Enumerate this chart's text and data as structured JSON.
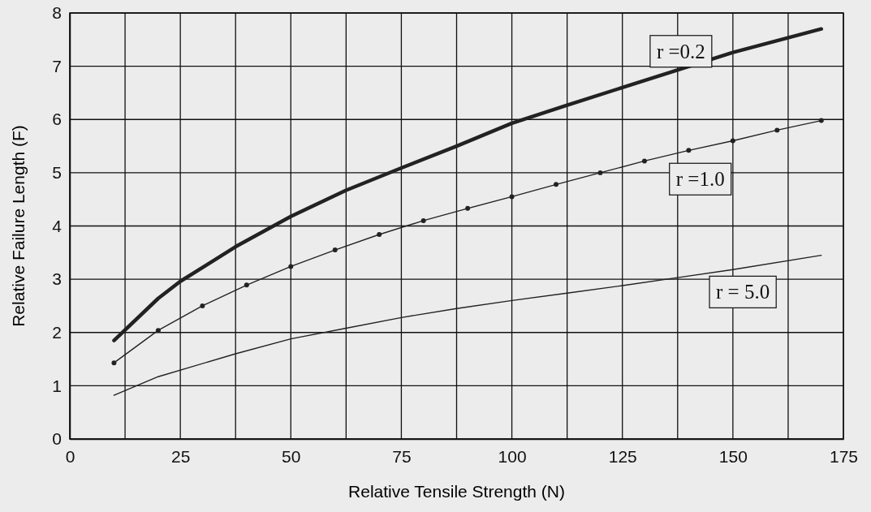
{
  "chart_data": {
    "type": "line",
    "xlabel": "Relative Tensile Strength (N)",
    "ylabel": "Relative Failure Length (F)",
    "xlim": [
      0,
      175
    ],
    "ylim": [
      0,
      8
    ],
    "xticks": [
      0,
      {
        "value": 12.5,
        "label": null
      },
      25,
      {
        "value": 37.5,
        "label": null
      },
      50,
      {
        "value": 62.5,
        "label": null
      },
      75,
      {
        "value": 87.5,
        "label": null
      },
      100,
      {
        "value": 112.5,
        "label": null
      },
      125,
      {
        "value": 137.5,
        "label": null
      },
      150,
      {
        "value": 162.5,
        "label": null
      },
      175
    ],
    "yticks": [
      0,
      1,
      2,
      3,
      4,
      5,
      6,
      7,
      8
    ],
    "grid": true,
    "series": [
      {
        "name": "r =0.2",
        "color": "#222222",
        "marker": "none",
        "x": [
          10,
          20,
          25,
          37.5,
          50,
          62.5,
          75,
          87.5,
          100,
          112.5,
          125,
          150,
          170
        ],
        "values": [
          1.85,
          2.64,
          2.96,
          3.61,
          4.18,
          4.67,
          5.09,
          5.5,
          5.93,
          6.27,
          6.6,
          7.26,
          7.7
        ]
      },
      {
        "name": "r =1.0",
        "color": "#222222",
        "marker": "circle",
        "x": [
          10,
          20,
          30,
          40,
          50,
          60,
          70,
          80,
          90,
          100,
          110,
          120,
          130,
          140,
          150,
          160,
          170
        ],
        "values": [
          1.43,
          2.04,
          2.5,
          2.89,
          3.24,
          3.55,
          3.84,
          4.1,
          4.33,
          4.55,
          4.78,
          5.0,
          5.22,
          5.42,
          5.6,
          5.8,
          5.98
        ]
      },
      {
        "name": "r = 5.0",
        "color": "#222222",
        "marker": "none",
        "x": [
          10,
          20,
          37.5,
          50,
          62.5,
          75,
          87.5,
          100,
          112.5,
          125,
          137.5,
          150,
          170
        ],
        "values": [
          0.82,
          1.17,
          1.6,
          1.88,
          2.08,
          2.28,
          2.45,
          2.6,
          2.74,
          2.88,
          3.03,
          3.18,
          3.45
        ]
      }
    ]
  }
}
